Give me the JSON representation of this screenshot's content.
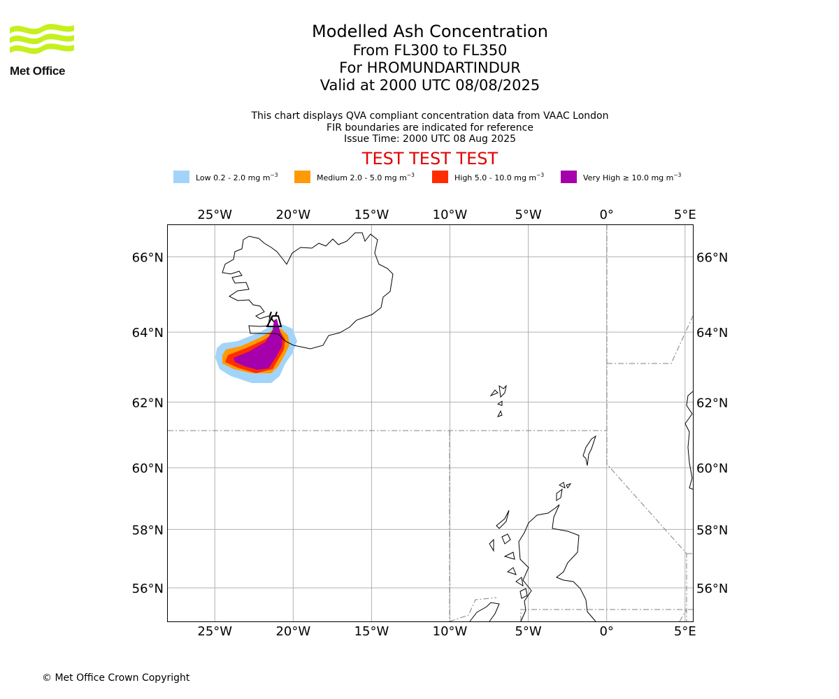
{
  "logo": {
    "text": "Met Office",
    "colors": {
      "waves": "#c5f01d"
    }
  },
  "header": {
    "title": "Modelled Ash Concentration",
    "flight_levels": "From FL300 to FL350",
    "volcano": "For HROMUNDARTINDUR",
    "valid": "Valid at 2000 UTC 08/08/2025"
  },
  "subtitle": {
    "line1": "This chart displays QVA compliant concentration data from VAAC London",
    "line2": "FIR boundaries are indicated for reference",
    "line3": "Issue Time: 2000 UTC 08 Aug 2025"
  },
  "banner": {
    "text": "TEST TEST TEST",
    "color": "#e00000"
  },
  "legend": [
    {
      "label": "Low 0.2 - 2.0 mg m",
      "unit_exp": "−3",
      "color": "#a2d4fa"
    },
    {
      "label": "Medium 2.0 - 5.0 mg m",
      "unit_exp": "−3",
      "color": "#ff9a05"
    },
    {
      "label": "High 5.0 - 10.0 mg m",
      "unit_exp": "−3",
      "color": "#ff2e00"
    },
    {
      "label": "Very High ≥ 10.0 mg m",
      "unit_exp": "−3",
      "color": "#a500ab"
    }
  ],
  "map": {
    "lon_range": [
      -28,
      5.5
    ],
    "lat_range": [
      54.8,
      66.8
    ],
    "lon_ticks": [
      {
        "value": -25,
        "label": "25°W"
      },
      {
        "value": -20,
        "label": "20°W"
      },
      {
        "value": -15,
        "label": "15°W"
      },
      {
        "value": -10,
        "label": "10°W"
      },
      {
        "value": -5,
        "label": "5°W"
      },
      {
        "value": 0,
        "label": "0°"
      },
      {
        "value": 5,
        "label": "5°E"
      }
    ],
    "lat_ticks": [
      {
        "value": 66,
        "label": "66°N"
      },
      {
        "value": 64,
        "label": "64°N"
      },
      {
        "value": 62,
        "label": "62°N"
      },
      {
        "value": 60,
        "label": "60°N"
      },
      {
        "value": 58,
        "label": "58°N"
      },
      {
        "value": 56,
        "label": "56°N"
      }
    ],
    "volcano_position": {
      "lon": -21.2,
      "lat": 64.1
    },
    "colors": {
      "grid": "#b0b0b0",
      "coast": "#000000",
      "fir": "#808080"
    }
  },
  "footer": {
    "copyright": "© Met Office Crown Copyright"
  }
}
